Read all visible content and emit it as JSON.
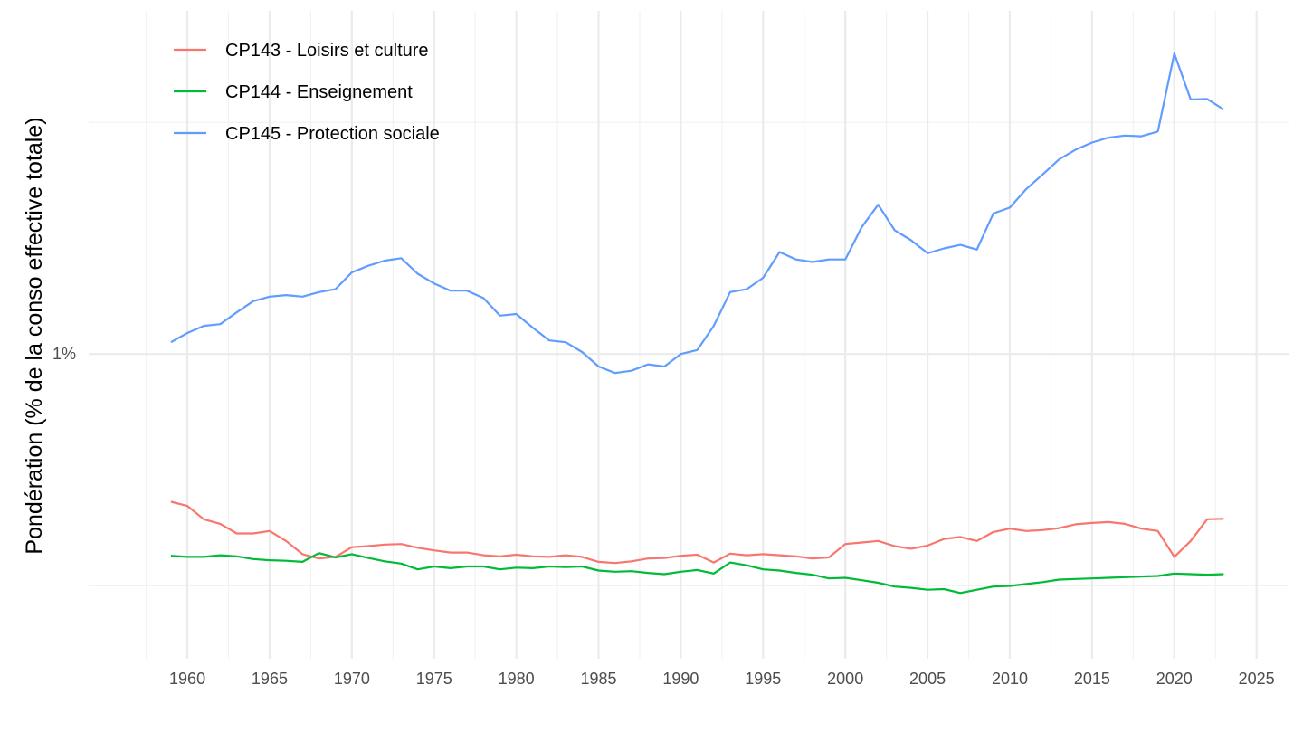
{
  "chart_data": {
    "type": "line",
    "title": "",
    "xlabel": "",
    "ylabel": "Pondération (% de la conso effective totale)",
    "xlim": [
      1954,
      2027
    ],
    "ylim": [
      0.22,
      5.5
    ],
    "y_scale": "log",
    "x_ticks": [
      "1960",
      "1965",
      "1970",
      "1975",
      "1980",
      "1985",
      "1990",
      "1995",
      "2000",
      "2005",
      "2010",
      "2015",
      "2020",
      "2025"
    ],
    "y_ticks": [
      {
        "value": 1,
        "label": "1%"
      }
    ],
    "grid": true,
    "legend_position": "top-left",
    "x": [
      1959,
      1960,
      1961,
      1962,
      1963,
      1964,
      1965,
      1966,
      1967,
      1968,
      1969,
      1970,
      1971,
      1972,
      1973,
      1974,
      1975,
      1976,
      1977,
      1978,
      1979,
      1980,
      1981,
      1982,
      1983,
      1984,
      1985,
      1986,
      1987,
      1988,
      1989,
      1990,
      1991,
      1992,
      1993,
      1994,
      1995,
      1996,
      1997,
      1998,
      1999,
      2000,
      2001,
      2002,
      2003,
      2004,
      2005,
      2006,
      2007,
      2008,
      2009,
      2010,
      2011,
      2012,
      2013,
      2014,
      2015,
      2016,
      2017,
      2018,
      2019,
      2020,
      2021,
      2022,
      2023
    ],
    "series": [
      {
        "name": "CP143 - Loisirs et culture",
        "color": "#F8766D",
        "values": [
          0.48,
          0.47,
          0.44,
          0.43,
          0.41,
          0.41,
          0.415,
          0.395,
          0.37,
          0.362,
          0.365,
          0.383,
          0.385,
          0.388,
          0.389,
          0.382,
          0.377,
          0.373,
          0.373,
          0.368,
          0.366,
          0.369,
          0.366,
          0.365,
          0.368,
          0.365,
          0.356,
          0.354,
          0.357,
          0.362,
          0.363,
          0.367,
          0.369,
          0.355,
          0.371,
          0.368,
          0.37,
          0.368,
          0.366,
          0.362,
          0.364,
          0.389,
          0.392,
          0.395,
          0.385,
          0.38,
          0.386,
          0.399,
          0.403,
          0.395,
          0.413,
          0.42,
          0.415,
          0.417,
          0.421,
          0.429,
          0.432,
          0.434,
          0.43,
          0.42,
          0.415,
          0.365,
          0.395,
          0.44,
          0.441
        ]
      },
      {
        "name": "CP144 - Enseignement",
        "color": "#00BA38",
        "values": [
          0.367,
          0.365,
          0.365,
          0.368,
          0.366,
          0.361,
          0.359,
          0.358,
          0.356,
          0.372,
          0.364,
          0.37,
          0.363,
          0.357,
          0.353,
          0.343,
          0.348,
          0.345,
          0.348,
          0.348,
          0.343,
          0.346,
          0.345,
          0.348,
          0.347,
          0.348,
          0.341,
          0.339,
          0.34,
          0.337,
          0.335,
          0.339,
          0.342,
          0.336,
          0.355,
          0.35,
          0.343,
          0.341,
          0.337,
          0.334,
          0.328,
          0.329,
          0.325,
          0.321,
          0.315,
          0.313,
          0.31,
          0.311,
          0.305,
          0.31,
          0.315,
          0.316,
          0.319,
          0.322,
          0.326,
          0.327,
          0.328,
          0.329,
          0.33,
          0.331,
          0.332,
          0.336,
          0.335,
          0.334,
          0.335
        ]
      },
      {
        "name": "CP145 - Protection sociale",
        "color": "#619CFF",
        "values": [
          1.06,
          1.11,
          1.15,
          1.16,
          1.23,
          1.3,
          1.33,
          1.34,
          1.33,
          1.36,
          1.38,
          1.5,
          1.55,
          1.59,
          1.61,
          1.49,
          1.42,
          1.37,
          1.37,
          1.32,
          1.21,
          1.22,
          1.14,
          1.07,
          1.06,
          1.01,
          0.94,
          0.91,
          0.92,
          0.95,
          0.94,
          1.0,
          1.02,
          1.15,
          1.36,
          1.38,
          1.46,
          1.66,
          1.6,
          1.58,
          1.6,
          1.6,
          1.88,
          2.1,
          1.85,
          1.76,
          1.65,
          1.69,
          1.72,
          1.68,
          2.01,
          2.07,
          2.27,
          2.44,
          2.63,
          2.76,
          2.86,
          2.93,
          2.96,
          2.95,
          3.02,
          4.45,
          3.54,
          3.55,
          3.37
        ]
      }
    ]
  }
}
